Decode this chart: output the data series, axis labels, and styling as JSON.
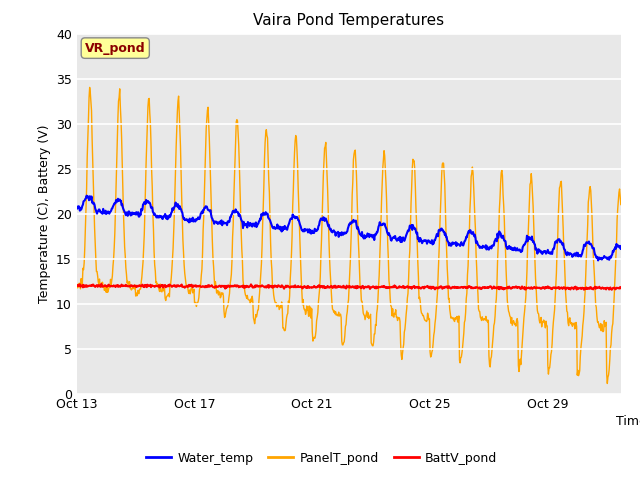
{
  "title": "Vaira Pond Temperatures",
  "xlabel": "Time",
  "ylabel": "Temperature (C), Battery (V)",
  "ylim": [
    0,
    40
  ],
  "yticks": [
    0,
    5,
    10,
    15,
    20,
    25,
    30,
    35,
    40
  ],
  "annotation_text": "VR_pond",
  "annotation_color": "#8B0000",
  "annotation_bg": "#FFFF99",
  "bg_color": "#E8E8E8",
  "water_temp_color": "#0000FF",
  "panel_temp_color": "#FFA500",
  "batt_color": "#FF0000",
  "legend_labels": [
    "Water_temp",
    "PanelT_pond",
    "BattV_pond"
  ],
  "x_tick_labels": [
    "Oct 13",
    "Oct 17",
    "Oct 21",
    "Oct 25",
    "Oct 29"
  ],
  "x_tick_positions": [
    0,
    4,
    8,
    12,
    16
  ],
  "figsize": [
    6.4,
    4.8
  ],
  "dpi": 100
}
